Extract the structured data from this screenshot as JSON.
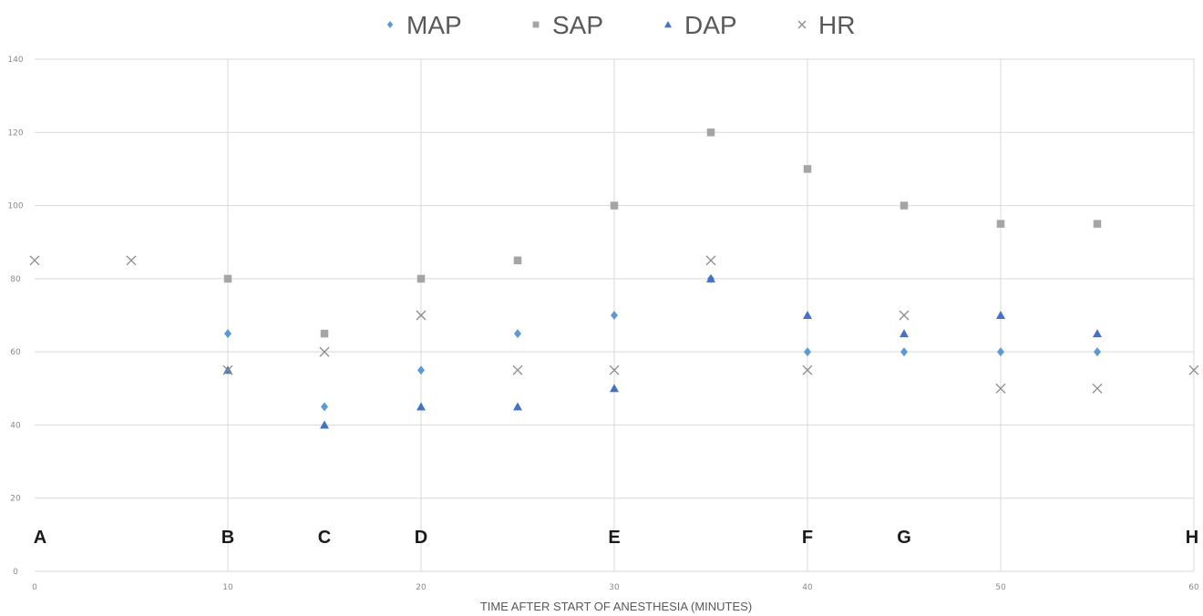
{
  "chart_data": {
    "type": "scatter",
    "title": "",
    "xlabel": "TIME AFTER START OF ANESTHESIA (MINUTES)",
    "ylabel": "",
    "xlim": [
      0,
      60
    ],
    "ylim": [
      0,
      140
    ],
    "x_ticks": [
      "0",
      "10",
      "20",
      "30",
      "40",
      "50",
      "60"
    ],
    "y_ticks": [
      "0",
      "20",
      "40",
      "60",
      "80",
      "100",
      "120",
      "140"
    ],
    "grid": true,
    "legend_position": "top",
    "series": [
      {
        "name": "MAP",
        "marker": "diamond",
        "color": "#5b9bd5",
        "points": [
          [
            10,
            65
          ],
          [
            15,
            45
          ],
          [
            20,
            55
          ],
          [
            25,
            65
          ],
          [
            30,
            70
          ],
          [
            35,
            80
          ],
          [
            40,
            60
          ],
          [
            45,
            60
          ],
          [
            50,
            60
          ],
          [
            55,
            60
          ]
        ]
      },
      {
        "name": "SAP",
        "marker": "square",
        "color": "#a5a5a5",
        "points": [
          [
            10,
            80
          ],
          [
            15,
            65
          ],
          [
            20,
            80
          ],
          [
            25,
            85
          ],
          [
            30,
            100
          ],
          [
            35,
            120
          ],
          [
            40,
            110
          ],
          [
            45,
            100
          ],
          [
            50,
            95
          ],
          [
            55,
            95
          ]
        ]
      },
      {
        "name": "DAP",
        "marker": "triangle",
        "color": "#4472c4",
        "points": [
          [
            10,
            55
          ],
          [
            15,
            40
          ],
          [
            20,
            45
          ],
          [
            25,
            45
          ],
          [
            30,
            50
          ],
          [
            35,
            80
          ],
          [
            40,
            70
          ],
          [
            45,
            65
          ],
          [
            50,
            70
          ],
          [
            55,
            65
          ]
        ]
      },
      {
        "name": "HR",
        "marker": "x",
        "color": "#8c8c8c",
        "points": [
          [
            0,
            85
          ],
          [
            5,
            85
          ],
          [
            10,
            55
          ],
          [
            15,
            60
          ],
          [
            20,
            70
          ],
          [
            25,
            55
          ],
          [
            30,
            55
          ],
          [
            35,
            85
          ],
          [
            40,
            55
          ],
          [
            45,
            70
          ],
          [
            50,
            50
          ],
          [
            55,
            50
          ],
          [
            60,
            55
          ]
        ]
      }
    ],
    "annotations": [
      {
        "text": "A",
        "x": 0
      },
      {
        "text": "B",
        "x": 10
      },
      {
        "text": "C",
        "x": 15
      },
      {
        "text": "D",
        "x": 20
      },
      {
        "text": "E",
        "x": 30
      },
      {
        "text": "F",
        "x": 40
      },
      {
        "text": "G",
        "x": 45
      },
      {
        "text": "H",
        "x": 60
      }
    ]
  }
}
